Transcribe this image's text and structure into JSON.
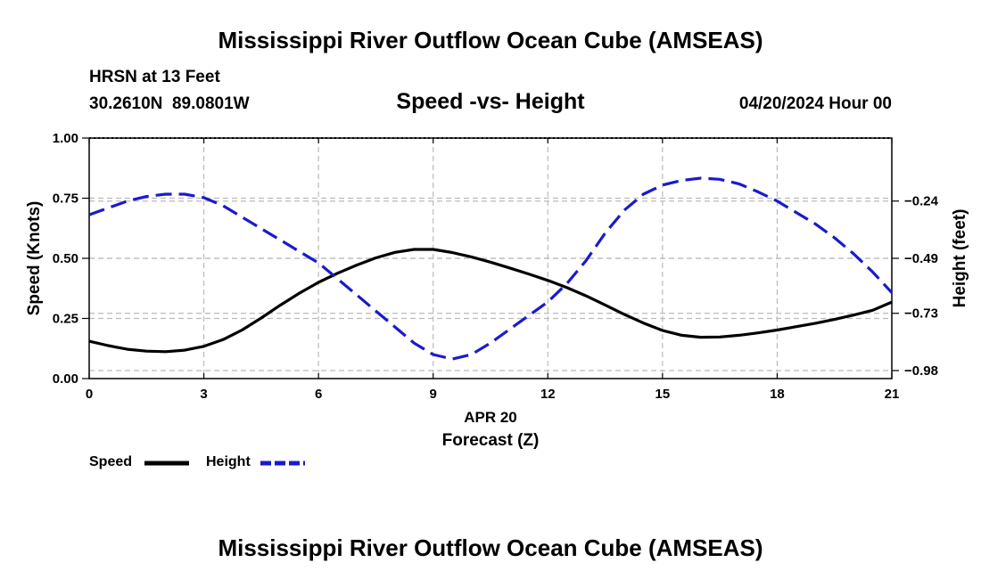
{
  "header": {
    "main_title": "Mississippi River Outflow Ocean Cube (AMSEAS)",
    "station_line": "HRSN at 13 Feet",
    "coords_line": "30.2610N  89.0801W",
    "subtitle": "Speed -vs- Height",
    "date_line": "04/20/2024 Hour 00"
  },
  "footer": {
    "repeat_title": "Mississippi River Outflow Ocean Cube (AMSEAS)"
  },
  "legend": {
    "speed_label": "Speed",
    "height_label": "Height"
  },
  "colors": {
    "speed": "#000000",
    "height": "#1a1acc",
    "grid": "#bbbbbb"
  },
  "chart_data": {
    "type": "line",
    "title": "Speed -vs- Height",
    "xlabel": "Forecast (Z)",
    "xlabel_date": "APR 20",
    "ylabel": "Speed (Knots)",
    "y2label": "Height (feet)",
    "xlim": [
      0,
      21
    ],
    "ylim": [
      0,
      1
    ],
    "y2lim": [
      -1.015,
      0.035
    ],
    "x_ticks": [
      0,
      3,
      6,
      9,
      12,
      15,
      18,
      21
    ],
    "x_tick_labels": [
      "0",
      "3",
      "6",
      "9",
      "12",
      "15",
      "18",
      "21"
    ],
    "y_ticks": [
      0,
      0.25,
      0.5,
      0.75,
      1.0
    ],
    "y_tick_labels": [
      "0.00",
      "0.25",
      "0.50",
      "0.75",
      "1.00"
    ],
    "y2_ticks": [
      -0.98,
      -0.73,
      -0.49,
      -0.24
    ],
    "y2_tick_labels": [
      "-0.98",
      "-0.73",
      "-0.49",
      "-0.24"
    ],
    "grid": true,
    "series": [
      {
        "name": "Speed",
        "axis": "left",
        "style": "solid",
        "x": [
          0,
          0.5,
          1,
          1.5,
          2,
          2.5,
          3,
          3.5,
          4,
          4.5,
          5,
          5.5,
          6,
          6.5,
          7,
          7.5,
          8,
          8.5,
          9,
          9.5,
          10,
          10.5,
          11,
          11.5,
          12,
          12.5,
          13,
          13.5,
          14,
          14.5,
          15,
          15.5,
          16,
          16.5,
          17,
          17.5,
          18,
          18.5,
          19,
          19.5,
          20,
          20.5,
          21
        ],
        "values": [
          0.155,
          0.137,
          0.122,
          0.114,
          0.112,
          0.118,
          0.134,
          0.162,
          0.202,
          0.252,
          0.305,
          0.355,
          0.4,
          0.438,
          0.472,
          0.502,
          0.525,
          0.537,
          0.537,
          0.524,
          0.506,
          0.484,
          0.46,
          0.435,
          0.408,
          0.378,
          0.344,
          0.306,
          0.267,
          0.231,
          0.2,
          0.18,
          0.172,
          0.173,
          0.18,
          0.19,
          0.202,
          0.216,
          0.23,
          0.246,
          0.264,
          0.284,
          0.318
        ]
      },
      {
        "name": "Height",
        "axis": "right",
        "style": "dashed",
        "x": [
          0,
          0.5,
          1,
          1.5,
          2,
          2.5,
          3,
          3.5,
          4,
          4.5,
          5,
          5.5,
          6,
          6.5,
          7,
          7.5,
          8,
          8.5,
          9,
          9.5,
          10,
          10.5,
          11,
          11.5,
          12,
          12.5,
          13,
          13.5,
          14,
          14.5,
          15,
          15.5,
          16,
          16.5,
          17,
          17.5,
          18,
          18.5,
          19,
          19.5,
          20,
          20.5,
          21
        ],
        "values": [
          -0.3,
          -0.27,
          -0.24,
          -0.22,
          -0.21,
          -0.21,
          -0.225,
          -0.26,
          -0.31,
          -0.36,
          -0.41,
          -0.46,
          -0.51,
          -0.58,
          -0.65,
          -0.72,
          -0.79,
          -0.86,
          -0.91,
          -0.93,
          -0.91,
          -0.86,
          -0.8,
          -0.74,
          -0.68,
          -0.6,
          -0.5,
          -0.38,
          -0.28,
          -0.21,
          -0.17,
          -0.15,
          -0.14,
          -0.145,
          -0.165,
          -0.2,
          -0.24,
          -0.29,
          -0.34,
          -0.4,
          -0.47,
          -0.55,
          -0.64
        ]
      }
    ]
  }
}
